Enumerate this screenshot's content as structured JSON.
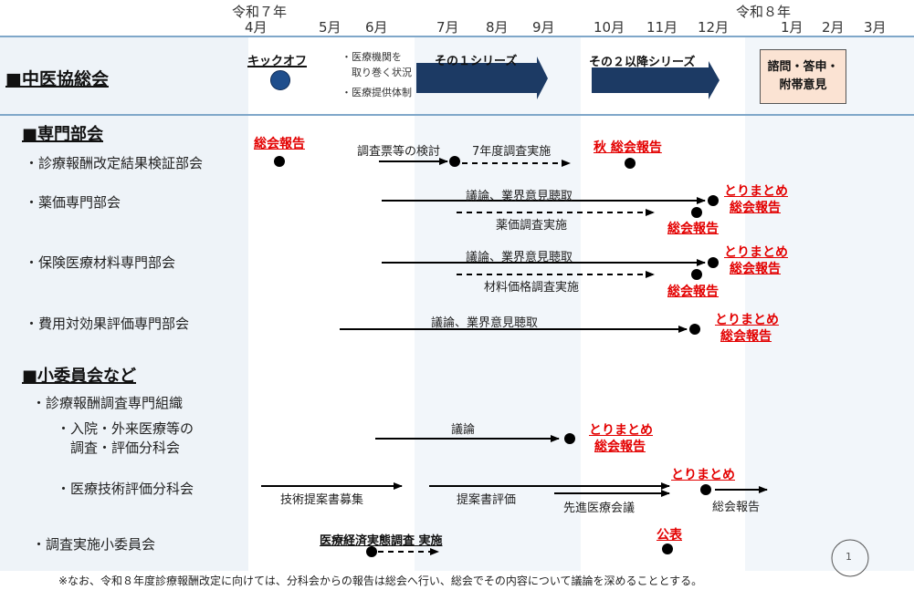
{
  "timeline": {
    "era_start": "令和７年",
    "era_end": "令和８年",
    "months": [
      "4月",
      "5月",
      "6月",
      "7月",
      "8月",
      "9月",
      "10月",
      "11月",
      "12月",
      "1月",
      "2月",
      "3月"
    ]
  },
  "chuikyo": {
    "title": "■中医協総会",
    "kickoff": "キックオフ",
    "bullet1": "・医療機関を\n　取り巻く状況",
    "bullet2": "・医療提供体制",
    "series1": "その１シリーズ",
    "series2": "その２以降シリーズ",
    "final_box": "諮問・答申・\n附帯意見"
  },
  "senmon": {
    "title": "■専門部会",
    "rows": [
      {
        "label": "・診療報酬改定結果検証部会"
      },
      {
        "label": "・薬価専門部会"
      },
      {
        "label": "・保険医療材料専門部会"
      },
      {
        "label": "・費用対効果評価専門部会"
      }
    ]
  },
  "shoiinkai": {
    "title": "■小委員会など",
    "org": "・診療報酬調査専門組織",
    "sub1": "・入院・外来医療等の\n　調査・評価分科会",
    "sub2": "・医療技術評価分科会",
    "survey": "・調査実施小委員会"
  },
  "labels": {
    "soukai_houkoku": "総会報告",
    "chosahyo": "調査票等の検討",
    "r7_chosa": "7年度調査実施",
    "aki_soukai": "秋 総会報告",
    "giron_gyokai": "議論、業界意見聴取",
    "yakka_chosa": "薬価調査実施",
    "zairyo_chosa": "材料価格調査実施",
    "torimatome": "とりまとめ",
    "giron": "議論",
    "gijutsu_boshu": "技術提案書募集",
    "teian_hyoka": "提案書評価",
    "senshin": "先進医療会議",
    "soukai_houkoku_plain": "総会報告",
    "keizai_chosa": "医療経済実態調査 実施",
    "kohyo": "公表"
  },
  "footnote": "※なお、令和８年度診療報酬改定に向けては、分科会からの報告は総会へ行い、総会でその内容について議論を深めることとする。",
  "page_number": "1"
}
